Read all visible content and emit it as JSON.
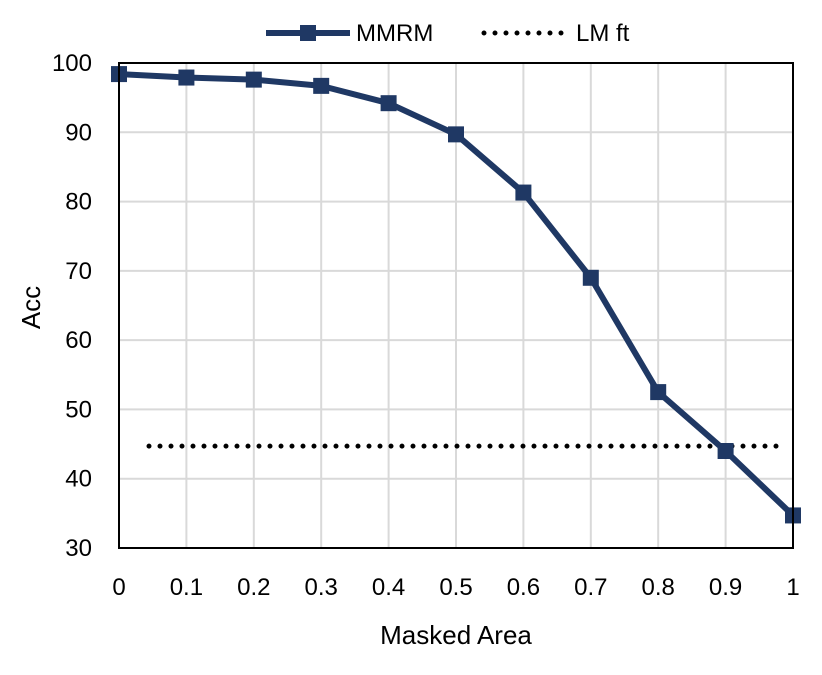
{
  "chart_data": {
    "type": "line",
    "title": "",
    "xlabel": "Masked Area",
    "ylabel": "Acc",
    "x": [
      0,
      0.1,
      0.2,
      0.3,
      0.4,
      0.5,
      0.6,
      0.7,
      0.8,
      0.9,
      1
    ],
    "x_tick_labels": [
      "0",
      "0.1",
      "0.2",
      "0.3",
      "0.4",
      "0.5",
      "0.6",
      "0.7",
      "0.8",
      "0.9",
      "1"
    ],
    "ylim": [
      30,
      100
    ],
    "y_ticks": [
      30,
      40,
      50,
      60,
      70,
      80,
      90,
      100
    ],
    "grid": true,
    "legend_position": "top-center",
    "series": [
      {
        "name": "MMRM",
        "style": "solid-line-square-markers",
        "color": "#1f3864",
        "values": [
          98.4,
          97.9,
          97.6,
          96.7,
          94.2,
          89.7,
          81.3,
          69.0,
          52.5,
          44.0,
          34.7
        ]
      },
      {
        "name": "LM ft",
        "style": "dotted-line",
        "color": "#000000",
        "values": [
          44.7,
          44.7,
          44.7,
          44.7,
          44.7,
          44.7,
          44.7,
          44.7,
          44.7,
          44.7,
          44.7
        ]
      }
    ]
  }
}
